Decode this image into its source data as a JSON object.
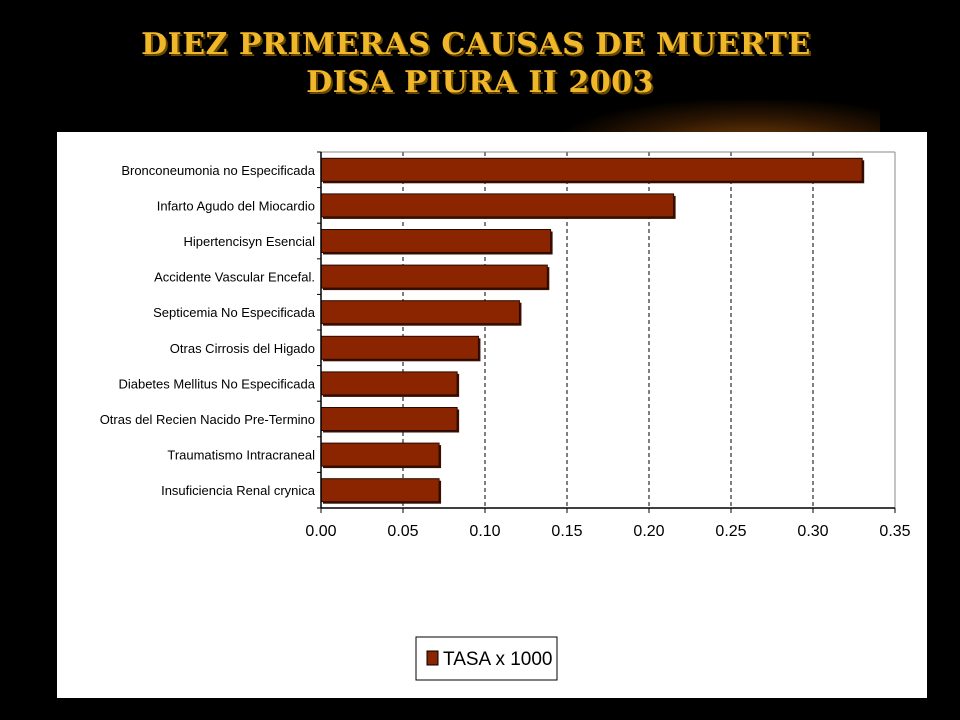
{
  "title": {
    "line1": "DIEZ PRIMERAS CAUSAS DE MUERTE",
    "line2": "DISA PIURA II 2003"
  },
  "colors": {
    "background": "#000000",
    "title": "#f0b72a",
    "bar": "#8b2500",
    "bar_edge": "#3a0e00"
  },
  "chart_data": {
    "type": "bar",
    "orientation": "horizontal",
    "categories": [
      "Bronconeumonia no Especificada",
      "Infarto Agudo del Miocardio",
      "Hipertencisyn Esencial",
      "Accidente Vascular Encefal.",
      "Septicemia No Especificada",
      "Otras Cirrosis del Higado",
      "Diabetes Mellitus No Especificada",
      "Otras del Recien Nacido Pre-Termino",
      "Traumatismo Intracraneal",
      "Insuficiencia Renal crynica"
    ],
    "series": [
      {
        "name": "TASA x 1000",
        "values": [
          0.33,
          0.215,
          0.14,
          0.138,
          0.121,
          0.096,
          0.083,
          0.083,
          0.072,
          0.072
        ]
      }
    ],
    "xlim": [
      0,
      0.35
    ],
    "xticks": [
      "0.00",
      "0.05",
      "0.10",
      "0.15",
      "0.20",
      "0.25",
      "0.30",
      "0.35"
    ],
    "xlabel": "",
    "ylabel": "",
    "grid": "vertical dashed",
    "legend_position": "bottom-center"
  }
}
